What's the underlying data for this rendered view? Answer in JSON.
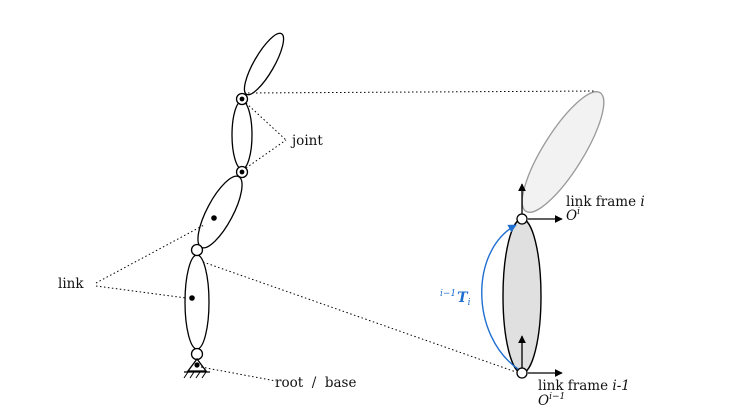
{
  "labels": {
    "joint": "joint",
    "link": "link",
    "root_base": "root  /  base",
    "link_frame_i": "link frame",
    "link_frame_i_idx": "i",
    "O_i_base": "O",
    "O_i_sup": "i",
    "link_frame_i1": "link frame",
    "link_frame_i1_idx": "i-1",
    "O_i1_base": "O",
    "O_i1_sup": "i−1",
    "T_pre_sup": "i−1",
    "T_letter": "T",
    "T_sub": "i"
  },
  "colors": {
    "stroke": "#000000",
    "link_fill_gray": "#e0e0e0",
    "link_fill_light": "#f2f2f2",
    "link_stroke_light": "#9a9a9a",
    "transform_blue": "#1f6fd1"
  }
}
